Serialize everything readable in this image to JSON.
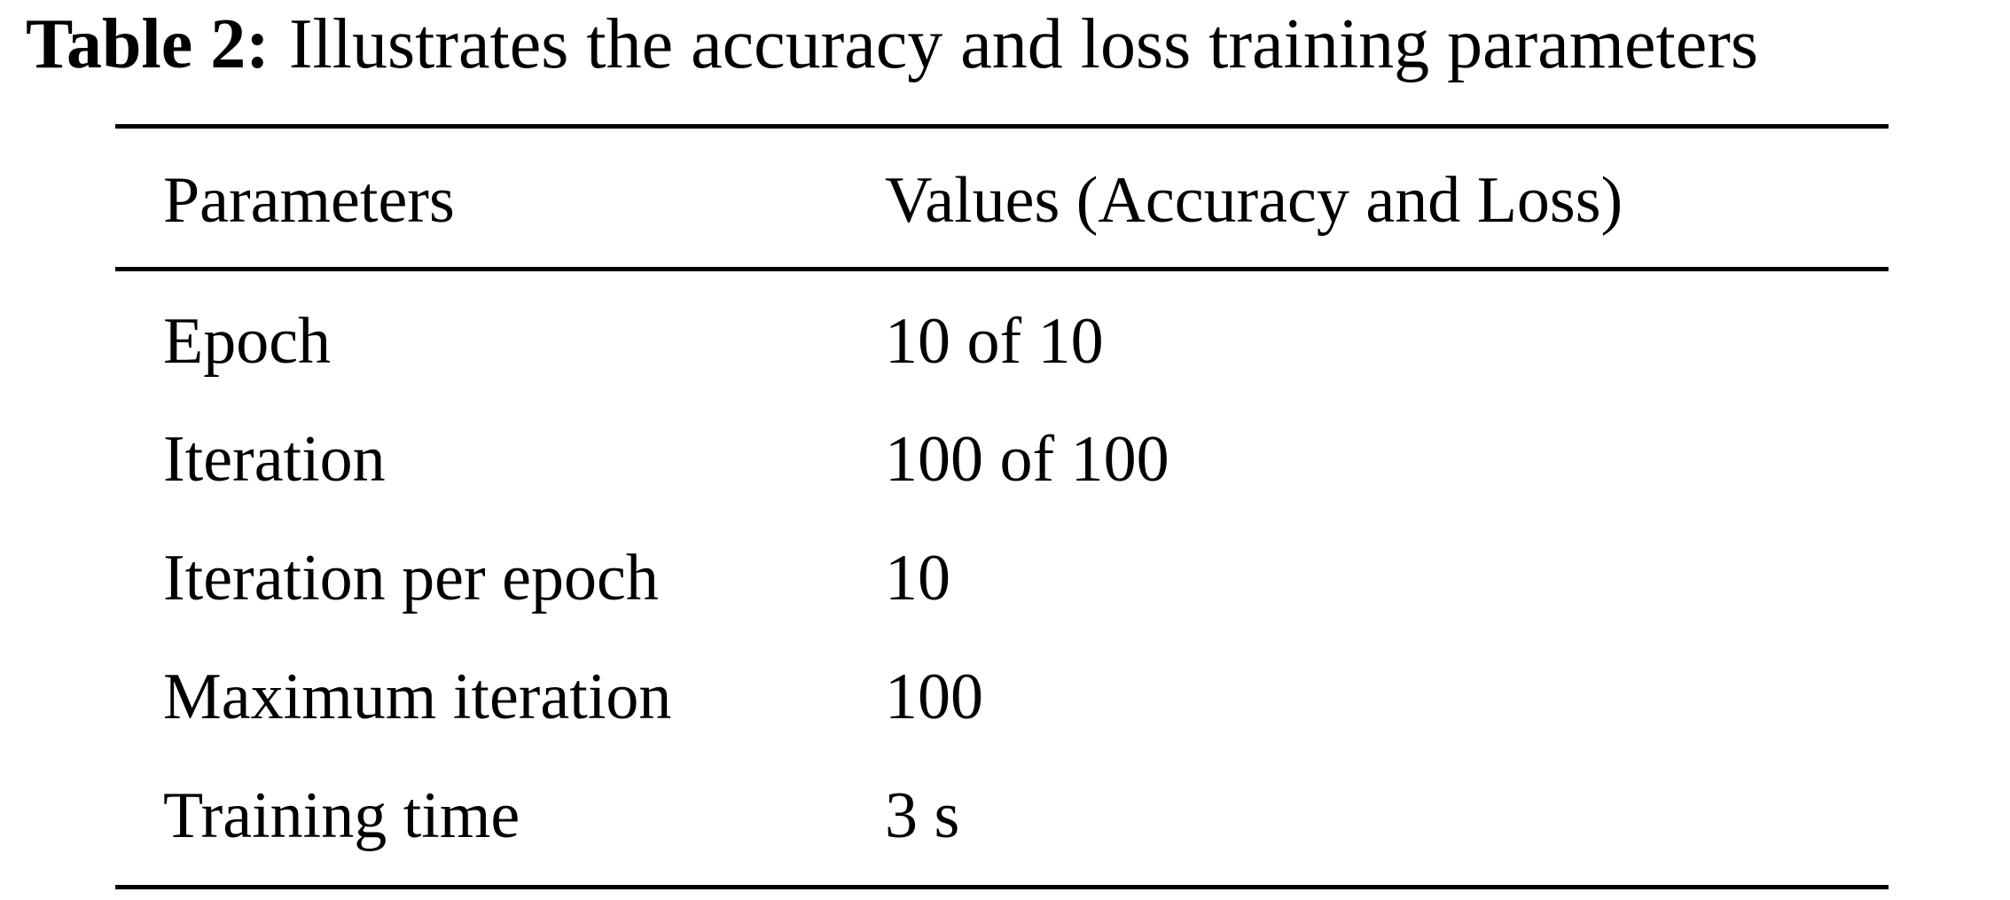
{
  "caption": {
    "label": "Table 2:",
    "text": "Illustrates the accuracy and loss training parameters"
  },
  "table": {
    "header": [
      "Parameters",
      "Values (Accuracy and Loss)"
    ],
    "rows": [
      [
        "Epoch",
        "10 of 10"
      ],
      [
        "Iteration",
        "100 of 100"
      ],
      [
        "Iteration per epoch",
        "10"
      ],
      [
        "Maximum iteration",
        "100"
      ],
      [
        "Training time",
        "3 s"
      ]
    ]
  }
}
